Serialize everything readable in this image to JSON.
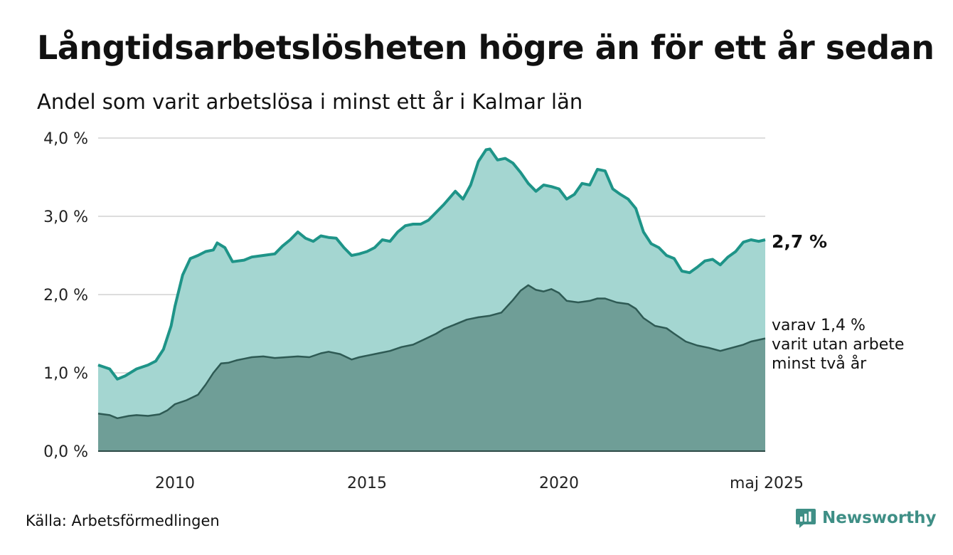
{
  "header": {
    "title": "Långtidsarbetslösheten högre än för ett år sedan",
    "subtitle": "Andel som varit arbetslösa i minst ett år i Kalmar län"
  },
  "footer": {
    "source": "Källa: Arbetsförmedlingen",
    "brand": "Newsworthy"
  },
  "annotations": {
    "end_value": "2,7 %",
    "sub_lines": [
      "varav 1,4 %",
      "varit utan arbete",
      "minst två år"
    ]
  },
  "colors": {
    "main_fill": "#a4d6d1",
    "main_line": "#1e9488",
    "sub_fill": "#6f9e97",
    "sub_line": "#2e5a54",
    "grid": "#dddddd",
    "brand": "#3f8f86"
  },
  "chart_data": {
    "type": "area",
    "x_unit": "year",
    "xlim": [
      2008.0,
      2025.37
    ],
    "ylim": [
      0,
      4
    ],
    "yticks": [
      0,
      1,
      2,
      3,
      4
    ],
    "ytick_labels": [
      "0,0 %",
      "1,0 %",
      "2,0 %",
      "3,0 %",
      "4,0 %"
    ],
    "xticks": [
      2010,
      2015,
      2020,
      2025.37
    ],
    "xtick_labels": [
      "2010",
      "2015",
      "2020",
      "maj 2025"
    ],
    "grid": true,
    "series": [
      {
        "values": [
          [
            2008.0,
            1.1
          ],
          [
            2008.3,
            1.05
          ],
          [
            2008.5,
            0.92
          ],
          [
            2008.7,
            0.96
          ],
          [
            2009.0,
            1.05
          ],
          [
            2009.3,
            1.1
          ],
          [
            2009.5,
            1.15
          ],
          [
            2009.7,
            1.3
          ],
          [
            2009.9,
            1.6
          ],
          [
            2010.0,
            1.85
          ],
          [
            2010.2,
            2.25
          ],
          [
            2010.4,
            2.46
          ],
          [
            2010.6,
            2.5
          ],
          [
            2010.8,
            2.55
          ],
          [
            2011.0,
            2.57
          ],
          [
            2011.1,
            2.66
          ],
          [
            2011.3,
            2.6
          ],
          [
            2011.5,
            2.42
          ],
          [
            2011.8,
            2.44
          ],
          [
            2012.0,
            2.48
          ],
          [
            2012.3,
            2.5
          ],
          [
            2012.6,
            2.52
          ],
          [
            2012.8,
            2.62
          ],
          [
            2013.0,
            2.7
          ],
          [
            2013.2,
            2.8
          ],
          [
            2013.4,
            2.72
          ],
          [
            2013.6,
            2.68
          ],
          [
            2013.8,
            2.75
          ],
          [
            2014.0,
            2.73
          ],
          [
            2014.2,
            2.72
          ],
          [
            2014.4,
            2.6
          ],
          [
            2014.6,
            2.5
          ],
          [
            2014.8,
            2.52
          ],
          [
            2015.0,
            2.55
          ],
          [
            2015.2,
            2.6
          ],
          [
            2015.4,
            2.7
          ],
          [
            2015.6,
            2.68
          ],
          [
            2015.8,
            2.8
          ],
          [
            2016.0,
            2.88
          ],
          [
            2016.2,
            2.9
          ],
          [
            2016.4,
            2.9
          ],
          [
            2016.6,
            2.95
          ],
          [
            2016.8,
            3.05
          ],
          [
            2017.0,
            3.15
          ],
          [
            2017.3,
            3.32
          ],
          [
            2017.5,
            3.22
          ],
          [
            2017.7,
            3.4
          ],
          [
            2017.9,
            3.7
          ],
          [
            2018.1,
            3.85
          ],
          [
            2018.2,
            3.86
          ],
          [
            2018.4,
            3.72
          ],
          [
            2018.6,
            3.74
          ],
          [
            2018.8,
            3.68
          ],
          [
            2019.0,
            3.56
          ],
          [
            2019.2,
            3.42
          ],
          [
            2019.4,
            3.32
          ],
          [
            2019.6,
            3.4
          ],
          [
            2019.8,
            3.38
          ],
          [
            2020.0,
            3.35
          ],
          [
            2020.2,
            3.22
          ],
          [
            2020.4,
            3.28
          ],
          [
            2020.6,
            3.42
          ],
          [
            2020.8,
            3.4
          ],
          [
            2021.0,
            3.6
          ],
          [
            2021.2,
            3.58
          ],
          [
            2021.4,
            3.35
          ],
          [
            2021.6,
            3.28
          ],
          [
            2021.8,
            3.22
          ],
          [
            2022.0,
            3.1
          ],
          [
            2022.2,
            2.8
          ],
          [
            2022.4,
            2.65
          ],
          [
            2022.6,
            2.6
          ],
          [
            2022.8,
            2.5
          ],
          [
            2023.0,
            2.46
          ],
          [
            2023.2,
            2.3
          ],
          [
            2023.4,
            2.28
          ],
          [
            2023.6,
            2.35
          ],
          [
            2023.8,
            2.43
          ],
          [
            2024.0,
            2.45
          ],
          [
            2024.2,
            2.38
          ],
          [
            2024.4,
            2.48
          ],
          [
            2024.6,
            2.55
          ],
          [
            2024.8,
            2.67
          ],
          [
            2025.0,
            2.7
          ],
          [
            2025.2,
            2.68
          ],
          [
            2025.37,
            2.7
          ]
        ]
      },
      {
        "values": [
          [
            2008.0,
            0.48
          ],
          [
            2008.3,
            0.46
          ],
          [
            2008.5,
            0.42
          ],
          [
            2008.8,
            0.45
          ],
          [
            2009.0,
            0.46
          ],
          [
            2009.3,
            0.45
          ],
          [
            2009.6,
            0.47
          ],
          [
            2009.8,
            0.52
          ],
          [
            2010.0,
            0.6
          ],
          [
            2010.3,
            0.65
          ],
          [
            2010.6,
            0.72
          ],
          [
            2010.8,
            0.85
          ],
          [
            2011.0,
            1.0
          ],
          [
            2011.2,
            1.12
          ],
          [
            2011.4,
            1.13
          ],
          [
            2011.6,
            1.16
          ],
          [
            2011.8,
            1.18
          ],
          [
            2012.0,
            1.2
          ],
          [
            2012.3,
            1.21
          ],
          [
            2012.6,
            1.19
          ],
          [
            2012.9,
            1.2
          ],
          [
            2013.2,
            1.21
          ],
          [
            2013.5,
            1.2
          ],
          [
            2013.8,
            1.25
          ],
          [
            2014.0,
            1.27
          ],
          [
            2014.3,
            1.24
          ],
          [
            2014.6,
            1.17
          ],
          [
            2014.8,
            1.2
          ],
          [
            2015.0,
            1.22
          ],
          [
            2015.3,
            1.25
          ],
          [
            2015.6,
            1.28
          ],
          [
            2015.9,
            1.33
          ],
          [
            2016.2,
            1.36
          ],
          [
            2016.5,
            1.43
          ],
          [
            2016.8,
            1.5
          ],
          [
            2017.0,
            1.56
          ],
          [
            2017.3,
            1.62
          ],
          [
            2017.6,
            1.68
          ],
          [
            2017.9,
            1.71
          ],
          [
            2018.2,
            1.73
          ],
          [
            2018.5,
            1.77
          ],
          [
            2018.8,
            1.93
          ],
          [
            2019.0,
            2.05
          ],
          [
            2019.2,
            2.12
          ],
          [
            2019.4,
            2.06
          ],
          [
            2019.6,
            2.04
          ],
          [
            2019.8,
            2.07
          ],
          [
            2020.0,
            2.02
          ],
          [
            2020.2,
            1.92
          ],
          [
            2020.5,
            1.9
          ],
          [
            2020.8,
            1.92
          ],
          [
            2021.0,
            1.95
          ],
          [
            2021.2,
            1.95
          ],
          [
            2021.5,
            1.9
          ],
          [
            2021.8,
            1.88
          ],
          [
            2022.0,
            1.82
          ],
          [
            2022.2,
            1.7
          ],
          [
            2022.5,
            1.6
          ],
          [
            2022.8,
            1.57
          ],
          [
            2023.0,
            1.5
          ],
          [
            2023.3,
            1.4
          ],
          [
            2023.6,
            1.35
          ],
          [
            2023.9,
            1.32
          ],
          [
            2024.2,
            1.28
          ],
          [
            2024.5,
            1.32
          ],
          [
            2024.8,
            1.36
          ],
          [
            2025.0,
            1.4
          ],
          [
            2025.37,
            1.44
          ]
        ]
      }
    ]
  }
}
